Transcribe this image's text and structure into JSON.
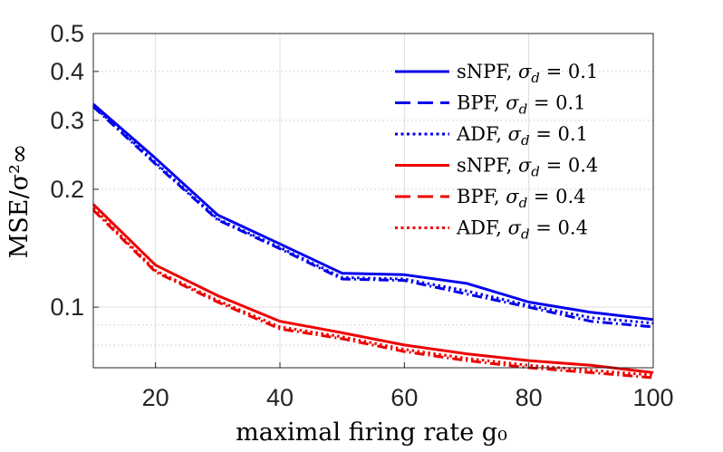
{
  "chart_data": {
    "type": "line",
    "title": "",
    "xlabel": "maximal firing rate g₀",
    "ylabel": "MSE/σ²∞",
    "x": [
      10,
      20,
      30,
      40,
      50,
      60,
      70,
      80,
      90,
      100
    ],
    "xlim": [
      10,
      100
    ],
    "ylim": [
      0.07,
      0.5
    ],
    "yscale": "log",
    "grid": true,
    "minor_grid": true,
    "legend_position": "top-right",
    "x_ticks": [
      20,
      40,
      60,
      80,
      100
    ],
    "x_tick_labels": [
      "20",
      "40",
      "60",
      "80",
      "100"
    ],
    "y_ticks": [
      0.1,
      0.2,
      0.3,
      0.4,
      0.5
    ],
    "y_tick_labels": [
      "0.1",
      "0.2",
      "0.3",
      "0.4",
      "0.5"
    ],
    "series": [
      {
        "name": "sNPF, σd = 0.1",
        "method": "sNPF",
        "sigma": "0.1",
        "color": "#0000ee",
        "style": "solid",
        "values": [
          0.33,
          0.24,
          0.172,
          0.145,
          0.122,
          0.121,
          0.115,
          0.103,
          0.097,
          0.093
        ]
      },
      {
        "name": "BPF, σd = 0.1",
        "method": "BPF",
        "sigma": "0.1",
        "color": "#0000ee",
        "style": "dashed",
        "values": [
          0.325,
          0.232,
          0.167,
          0.141,
          0.118,
          0.117,
          0.108,
          0.1,
          0.092,
          0.089
        ]
      },
      {
        "name": "ADF, σd = 0.1",
        "method": "ADF",
        "sigma": "0.1",
        "color": "#0000ee",
        "style": "dotted",
        "values": [
          0.327,
          0.234,
          0.168,
          0.142,
          0.119,
          0.118,
          0.11,
          0.101,
          0.094,
          0.091
        ]
      },
      {
        "name": "sNPF, σd = 0.4",
        "method": "sNPF",
        "sigma": "0.4",
        "color": "#ee0000",
        "style": "solid",
        "values": [
          0.183,
          0.128,
          0.107,
          0.092,
          0.086,
          0.08,
          0.076,
          0.073,
          0.071,
          0.068
        ]
      },
      {
        "name": "BPF, σd = 0.4",
        "method": "BPF",
        "sigma": "0.4",
        "color": "#ee0000",
        "style": "dashed",
        "values": [
          0.177,
          0.123,
          0.103,
          0.088,
          0.083,
          0.077,
          0.073,
          0.07,
          0.068,
          0.066
        ]
      },
      {
        "name": "ADF, σd = 0.4",
        "method": "ADF",
        "sigma": "0.4",
        "color": "#ee0000",
        "style": "dotted",
        "values": [
          0.179,
          0.124,
          0.104,
          0.089,
          0.084,
          0.078,
          0.074,
          0.071,
          0.069,
          0.067
        ]
      }
    ]
  }
}
